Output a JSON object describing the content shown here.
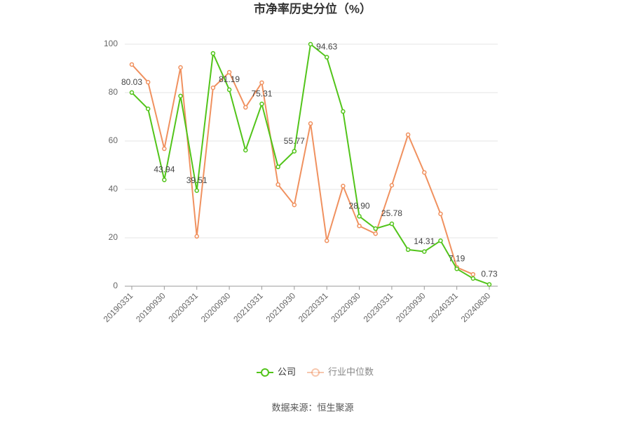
{
  "chart_data": {
    "type": "line",
    "title": "市净率历史分位（%）",
    "categories": [
      "20190331",
      null,
      "20190930",
      null,
      "20200331",
      null,
      "20200930",
      null,
      "20210331",
      null,
      "20210930",
      null,
      "20220331",
      null,
      "20220930",
      null,
      "20230331",
      null,
      "20230930",
      null,
      "20240331",
      null,
      "20240830"
    ],
    "series": [
      {
        "name": "公司",
        "color": "#52c41a",
        "values": [
          80.03,
          73.3,
          43.94,
          78.6,
          39.51,
          96.2,
          81.19,
          56.2,
          75.31,
          49.3,
          55.77,
          100,
          94.63,
          72.2,
          28.9,
          23.8,
          25.78,
          15.1,
          14.31,
          18.8,
          7.19,
          3.2,
          0.73
        ],
        "value_labels": [
          "80.03",
          null,
          "43.94",
          null,
          "39.51",
          null,
          "81.19",
          null,
          "75.31",
          null,
          "55.77",
          null,
          "94.63",
          null,
          "28.90",
          null,
          "25.78",
          null,
          "14.31",
          null,
          "7.19",
          null,
          "0.73"
        ]
      },
      {
        "name": "行业中位数",
        "color": "#f0915f",
        "values": [
          91.6,
          84.3,
          56.8,
          90.4,
          20.6,
          82.0,
          88.4,
          73.9,
          84.1,
          42.0,
          33.6,
          67.2,
          18.8,
          41.4,
          24.9,
          21.7,
          41.7,
          62.6,
          47.0,
          29.9,
          7.8,
          4.9,
          null
        ]
      }
    ],
    "ylim": [
      0,
      100
    ],
    "yticks": [
      0,
      20,
      40,
      60,
      80,
      100
    ],
    "grid": true,
    "legend": "bottom",
    "source": "数据来源：恒生聚源"
  }
}
